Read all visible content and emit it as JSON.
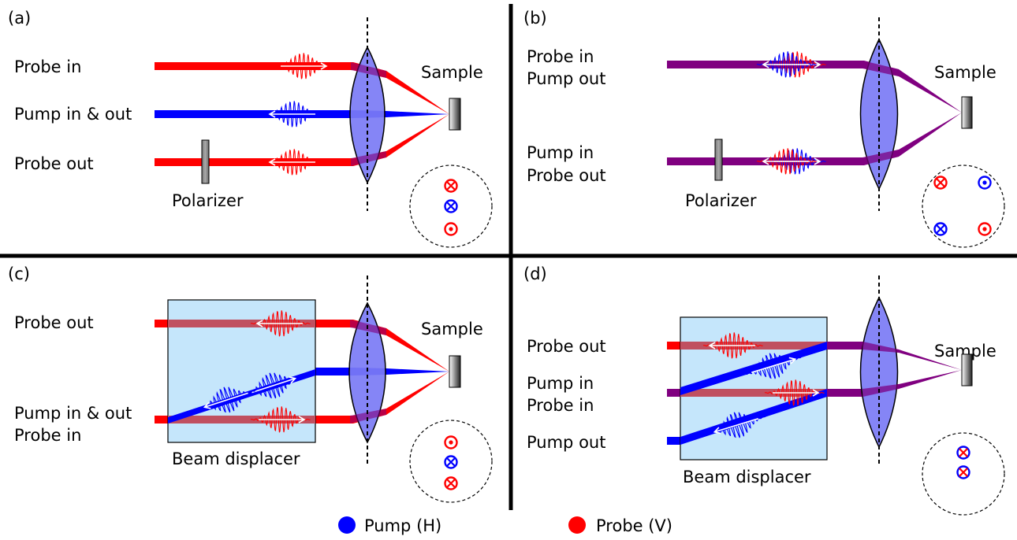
{
  "panels": {
    "a": {
      "tag": "(a)",
      "labels": [
        "Probe in",
        "Pump in & out",
        "Probe out"
      ],
      "polarizer": "Polarizer",
      "sample": "Sample"
    },
    "b": {
      "tag": "(b)",
      "labels": [
        "Probe in",
        "Pump out",
        "Pump in",
        "Probe out"
      ],
      "polarizer": "Polarizer",
      "sample": "Sample"
    },
    "c": {
      "tag": "(c)",
      "labels": [
        "Probe out",
        "Pump in & out",
        "Probe in"
      ],
      "displacer": "Beam displacer",
      "sample": "Sample"
    },
    "d": {
      "tag": "(d)",
      "labels": [
        "Probe out",
        "Pump in",
        "Probe in",
        "Pump out"
      ],
      "displacer": "Beam displacer",
      "sample": "Sample"
    }
  },
  "legend": {
    "pump": "Pump (H)",
    "probe": "Probe (V)"
  },
  "colors": {
    "pump": "#0000ff",
    "probe": "#ff0000",
    "mixed": "#800080",
    "lens": "#7b7bf5",
    "displacer": "#c5e6fb",
    "probe_in_displacer": "#c05060"
  }
}
